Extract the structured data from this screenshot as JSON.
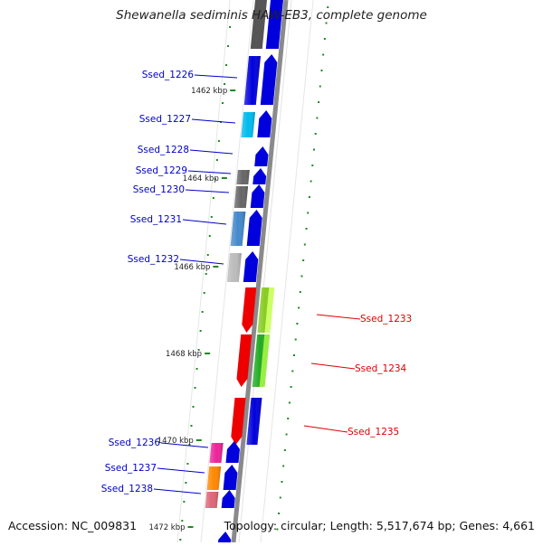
{
  "title": "Shewanella sediminis HAW-EB3, complete genome",
  "footer": {
    "accession": "Accession: NC_009831",
    "summary": "Topology: circular; Length: 5,517,674 bp; Genes: 4,661"
  },
  "kbp_labels": [
    "1462 kbp",
    "1464 kbp",
    "1466 kbp",
    "1468 kbp",
    "1470 kbp",
    "1472 kbp"
  ],
  "genes": [
    {
      "label": "Ssed_1226",
      "strand": "minus",
      "color": "#0000dd"
    },
    {
      "label": "Ssed_1227",
      "strand": "minus",
      "color": "#00bbee"
    },
    {
      "label": "Ssed_1228",
      "strand": "minus",
      "color": "#0000dd"
    },
    {
      "label": "Ssed_1229",
      "strand": "minus",
      "color": "#666666"
    },
    {
      "label": "Ssed_1230",
      "strand": "minus",
      "color": "#0000dd"
    },
    {
      "label": "Ssed_1231",
      "strand": "minus",
      "color": "#4488cc"
    },
    {
      "label": "Ssed_1232",
      "strand": "minus",
      "color": "#bbbbbb"
    },
    {
      "label": "Ssed_1233",
      "strand": "plus",
      "color": "#88cc22"
    },
    {
      "label": "Ssed_1234",
      "strand": "plus",
      "color": "#22aa22"
    },
    {
      "label": "Ssed_1235",
      "strand": "plus",
      "color": "#0000dd"
    },
    {
      "label": "Ssed_1236",
      "strand": "minus",
      "color": "#ee2299"
    },
    {
      "label": "Ssed_1237",
      "strand": "minus",
      "color": "#ff8800"
    },
    {
      "label": "Ssed_1238",
      "strand": "minus",
      "color": "#dd6677"
    }
  ],
  "colors": {
    "minus_label": "#0000cc",
    "plus_label": "#dd0000",
    "backbone": "#888888",
    "tick": "#228822",
    "cog_red": "#ee0000"
  }
}
